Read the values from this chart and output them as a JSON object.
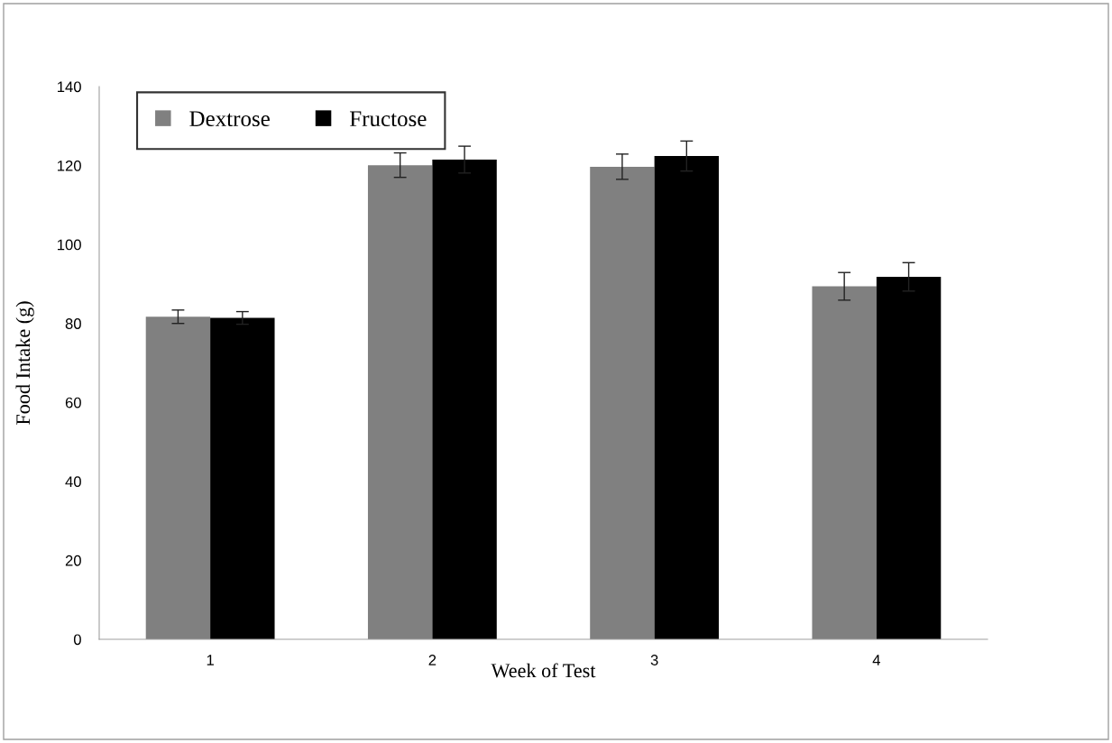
{
  "chart_data": {
    "type": "bar",
    "xlabel": "Week of Test",
    "ylabel": "Food Intake (g)",
    "categories": [
      "1",
      "2",
      "3",
      "4"
    ],
    "series": [
      {
        "name": "Dextrose",
        "color": "#808080",
        "values": [
          81.7,
          120.1,
          119.7,
          89.4
        ],
        "errors": [
          1.7,
          3.1,
          3.2,
          3.5
        ]
      },
      {
        "name": "Fructose",
        "color": "#000000",
        "values": [
          81.4,
          121.5,
          122.4,
          91.8
        ],
        "errors": [
          1.6,
          3.4,
          3.8,
          3.6
        ]
      }
    ],
    "ylim": [
      0,
      140
    ],
    "yticks": [
      0,
      20,
      40,
      60,
      80,
      100,
      120,
      140
    ],
    "grid": false,
    "legend": "top left"
  }
}
